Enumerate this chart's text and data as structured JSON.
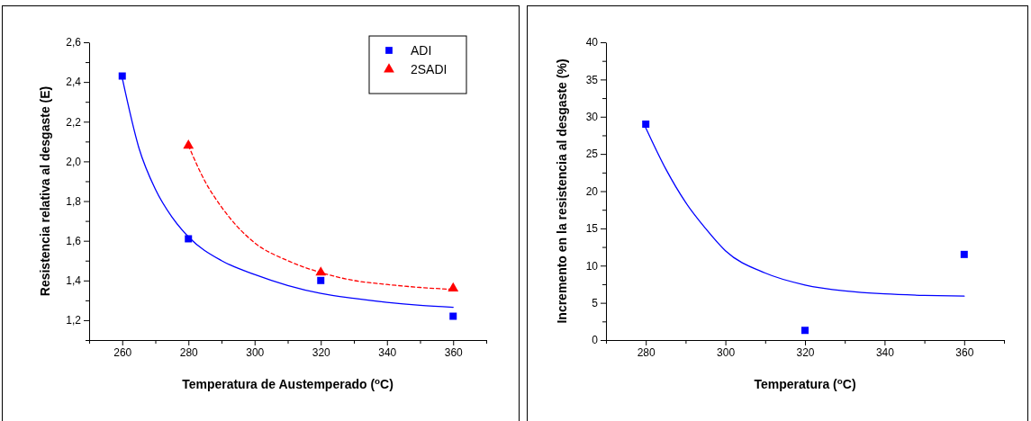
{
  "chart_data": [
    {
      "type": "scatter",
      "xlabel": "Temperatura de Austemperado ($^{o}$C)",
      "ylabel": "Resistencia relativa al desgaste (E)",
      "xlim": [
        250,
        370
      ],
      "ylim": [
        1.1,
        2.6
      ],
      "xticks": [
        {
          "value": 250,
          "label": null
        },
        260,
        {
          "value": 270,
          "label": null
        },
        280,
        {
          "value": 290,
          "label": null
        },
        300,
        {
          "value": 310,
          "label": null
        },
        320,
        {
          "value": 330,
          "label": null
        },
        340,
        {
          "value": 350,
          "label": null
        },
        360,
        {
          "value": 370,
          "label": null
        }
      ],
      "yticks": [
        {
          "value": 1.1,
          "label": null
        },
        {
          "value": 1.2,
          "label": "1,2"
        },
        {
          "value": 1.3,
          "label": null
        },
        {
          "value": 1.4,
          "label": "1,4"
        },
        {
          "value": 1.5,
          "label": null
        },
        {
          "value": 1.6,
          "label": "1,6"
        },
        {
          "value": 1.7,
          "label": null
        },
        {
          "value": 1.8,
          "label": "1,8"
        },
        {
          "value": 1.9,
          "label": null
        },
        {
          "value": 2.0,
          "label": "2,0"
        },
        {
          "value": 2.1,
          "label": null
        },
        {
          "value": 2.2,
          "label": "2,2"
        },
        {
          "value": 2.3,
          "label": null
        },
        {
          "value": 2.4,
          "label": "2,4"
        },
        {
          "value": 2.5,
          "label": null
        },
        {
          "value": 2.6,
          "label": "2,6"
        }
      ],
      "grid": false,
      "legend": "top right",
      "series": [
        {
          "name": "ADI",
          "marker": "square",
          "color": "#0000ff",
          "x": [
            260,
            280,
            320,
            360
          ],
          "values": [
            2.43,
            1.61,
            1.4,
            1.22
          ]
        },
        {
          "name": "2SADI",
          "marker": "triangle",
          "color": "#ff0000",
          "x": [
            280,
            320,
            360
          ],
          "values": [
            2.08,
            1.44,
            1.36
          ]
        },
        {
          "type": "line",
          "marker": "none",
          "line_style": "solid",
          "color": "#0000ff",
          "x": [
            260,
            265,
            270,
            275,
            280,
            290,
            300,
            310,
            320,
            330,
            340,
            350,
            360
          ],
          "values": [
            2.42,
            2.07,
            1.86,
            1.72,
            1.62,
            1.5,
            1.43,
            1.375,
            1.335,
            1.31,
            1.29,
            1.275,
            1.265
          ]
        },
        {
          "type": "line",
          "marker": "none",
          "line_style": "dashed",
          "color": "#ff0000",
          "x": [
            280,
            285,
            290,
            300,
            310,
            320,
            330,
            340,
            350,
            360
          ],
          "values": [
            2.08,
            1.9,
            1.77,
            1.59,
            1.5,
            1.44,
            1.4,
            1.38,
            1.365,
            1.355
          ]
        }
      ]
    },
    {
      "type": "scatter",
      "xlabel": "Temperatura ($^{o}$C)",
      "ylabel": "Incremento en la resistencia al desgaste (%)",
      "xlim": [
        270,
        370
      ],
      "ylim": [
        0,
        40
      ],
      "xticks": [
        {
          "value": 270,
          "label": null
        },
        280,
        {
          "value": 290,
          "label": null
        },
        300,
        {
          "value": 310,
          "label": null
        },
        320,
        {
          "value": 330,
          "label": null
        },
        340,
        {
          "value": 350,
          "label": null
        },
        360,
        {
          "value": 370,
          "label": null
        }
      ],
      "yticks": [
        0,
        {
          "value": 2.5,
          "label": null
        },
        5,
        {
          "value": 7.5,
          "label": null
        },
        10,
        {
          "value": 12.5,
          "label": null
        },
        15,
        {
          "value": 17.5,
          "label": null
        },
        20,
        {
          "value": 22.5,
          "label": null
        },
        25,
        {
          "value": 27.5,
          "label": null
        },
        30,
        {
          "value": 32.5,
          "label": null
        },
        35,
        {
          "value": 37.5,
          "label": null
        },
        40
      ],
      "grid": false,
      "legend": false,
      "series": [
        {
          "marker": "square",
          "color": "#0000ff",
          "x": [
            280,
            320,
            360
          ],
          "values": [
            29,
            1.3,
            11.5
          ]
        },
        {
          "type": "line",
          "marker": "none",
          "line_style": "solid",
          "color": "#0000ff",
          "x": [
            280,
            285,
            290,
            295,
            300,
            310,
            320,
            330,
            340,
            350,
            360
          ],
          "values": [
            28.5,
            23,
            18.5,
            15,
            12,
            9,
            7.4,
            6.6,
            6.2,
            6,
            5.9
          ]
        }
      ]
    }
  ]
}
